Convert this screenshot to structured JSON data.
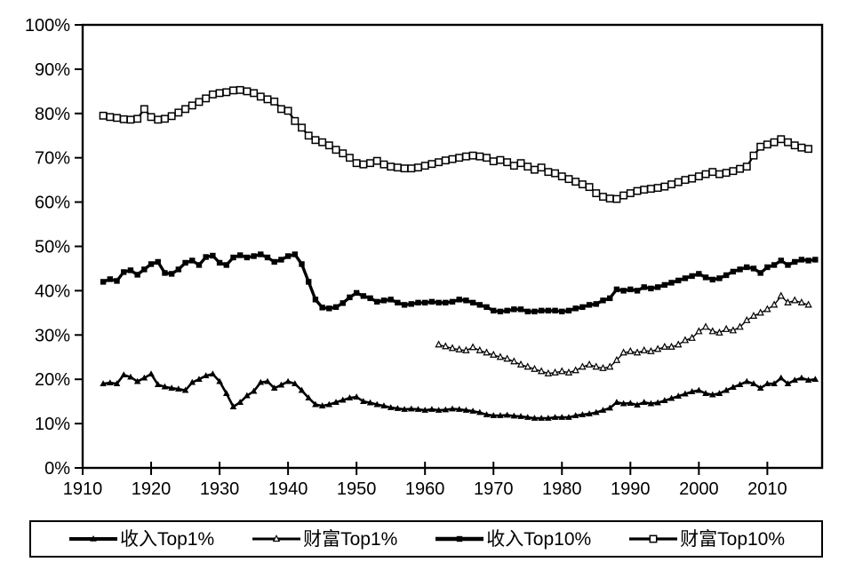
{
  "figure": {
    "background": "#ffffff",
    "axis_color": "#000000",
    "series_color": "#000000"
  },
  "chart_data": {
    "type": "line",
    "title": "",
    "xlabel": "",
    "ylabel": "",
    "grid": false,
    "legend_position": "bottom-boxed",
    "x_range": [
      1910,
      2018
    ],
    "y_range": [
      0,
      100
    ],
    "x_ticks": [
      1910,
      1920,
      1930,
      1940,
      1950,
      1960,
      1970,
      1980,
      1990,
      2000,
      2010
    ],
    "x_tick_labels": [
      "1910",
      "1920",
      "1930",
      "1940",
      "1950",
      "1960",
      "1970",
      "1980",
      "1990",
      "2000",
      "2010"
    ],
    "y_ticks": [
      0,
      10,
      20,
      30,
      40,
      50,
      60,
      70,
      80,
      90,
      100
    ],
    "y_tick_labels": [
      "0%",
      "10%",
      "20%",
      "30%",
      "40%",
      "50%",
      "60%",
      "70%",
      "80%",
      "90%",
      "100%"
    ],
    "series": [
      {
        "id": "income-top1",
        "name": "收入Top1%",
        "marker": "triangle-filled",
        "color": "#000000",
        "start_year": 1913,
        "values": [
          19.0,
          19.2,
          19.0,
          21.0,
          20.5,
          19.5,
          20.3,
          21.2,
          18.8,
          18.3,
          18.0,
          17.8,
          17.5,
          19.3,
          20.0,
          20.8,
          21.2,
          19.5,
          16.8,
          13.8,
          14.8,
          16.3,
          17.3,
          19.3,
          19.5,
          18.0,
          18.7,
          19.5,
          19.0,
          17.5,
          15.8,
          14.3,
          14.0,
          14.3,
          14.8,
          15.3,
          15.8,
          16.0,
          15.0,
          14.7,
          14.3,
          14.0,
          13.6,
          13.4,
          13.2,
          13.3,
          13.2,
          13.0,
          13.2,
          13.0,
          13.1,
          13.3,
          13.2,
          13.0,
          12.8,
          12.5,
          12.0,
          11.8,
          11.8,
          11.9,
          11.7,
          11.6,
          11.4,
          11.2,
          11.2,
          11.2,
          11.4,
          11.4,
          11.4,
          11.8,
          12.0,
          12.2,
          12.5,
          13.0,
          13.5,
          14.8,
          14.5,
          14.6,
          14.2,
          14.8,
          14.5,
          14.7,
          15.2,
          15.7,
          16.2,
          16.7,
          17.2,
          17.5,
          16.8,
          16.5,
          16.8,
          17.5,
          18.2,
          18.8,
          19.5,
          19.0,
          18.0,
          19.0,
          19.0,
          20.3,
          19.0,
          19.8,
          20.3,
          19.8,
          20.0
        ]
      },
      {
        "id": "wealth-top1",
        "name": "财富Top1%",
        "marker": "triangle-open",
        "color": "#000000",
        "start_year": 1962,
        "values": [
          27.8,
          27.4,
          27.0,
          26.7,
          26.5,
          27.2,
          26.5,
          26.0,
          25.5,
          25.0,
          24.6,
          24.0,
          23.3,
          22.8,
          22.3,
          21.8,
          21.3,
          21.5,
          21.8,
          21.5,
          22.0,
          22.8,
          23.3,
          22.8,
          22.5,
          22.8,
          24.3,
          26.0,
          26.3,
          26.0,
          26.5,
          26.3,
          26.8,
          27.3,
          27.3,
          27.8,
          28.8,
          29.3,
          30.8,
          31.8,
          30.8,
          30.5,
          31.3,
          31.0,
          31.8,
          33.3,
          34.3,
          35.0,
          35.8,
          36.8,
          38.8,
          37.3,
          37.8,
          37.3,
          36.8
        ]
      },
      {
        "id": "income-top10",
        "name": "收入Top10%",
        "marker": "square-filled",
        "color": "#000000",
        "start_year": 1913,
        "values": [
          42.0,
          42.6,
          42.2,
          44.2,
          44.6,
          43.6,
          44.8,
          46.0,
          46.5,
          44.0,
          43.8,
          44.8,
          46.3,
          46.8,
          45.8,
          47.6,
          47.9,
          46.3,
          45.8,
          47.5,
          48.0,
          47.5,
          47.8,
          48.2,
          47.5,
          46.5,
          47.0,
          47.8,
          48.2,
          46.0,
          42.0,
          38.0,
          36.2,
          36.0,
          36.3,
          37.2,
          38.5,
          39.5,
          38.8,
          38.3,
          37.5,
          37.8,
          38.0,
          37.3,
          36.8,
          37.0,
          37.3,
          37.3,
          37.5,
          37.3,
          37.3,
          37.5,
          38.0,
          37.8,
          37.3,
          36.8,
          36.3,
          35.5,
          35.3,
          35.5,
          35.8,
          35.8,
          35.3,
          35.3,
          35.5,
          35.5,
          35.5,
          35.3,
          35.5,
          36.0,
          36.3,
          36.8,
          37.0,
          37.8,
          38.3,
          40.3,
          40.0,
          40.3,
          40.0,
          40.8,
          40.5,
          40.8,
          41.3,
          41.8,
          42.3,
          42.8,
          43.3,
          43.8,
          43.0,
          42.5,
          42.8,
          43.5,
          44.3,
          44.8,
          45.3,
          45.0,
          44.0,
          45.3,
          45.8,
          46.8,
          45.8,
          46.5,
          47.0,
          46.8,
          47.0
        ]
      },
      {
        "id": "wealth-top10",
        "name": "财富Top10%",
        "marker": "square-open",
        "color": "#000000",
        "start_year": 1913,
        "values": [
          79.5,
          79.2,
          79.0,
          78.7,
          78.6,
          78.8,
          81.0,
          79.2,
          78.6,
          78.8,
          79.4,
          80.2,
          81.0,
          81.8,
          82.6,
          83.4,
          84.3,
          84.6,
          84.8,
          85.2,
          85.3,
          85.0,
          84.6,
          83.8,
          83.2,
          82.7,
          81.0,
          80.6,
          78.3,
          76.8,
          75.0,
          74.0,
          73.5,
          72.8,
          71.8,
          71.0,
          70.0,
          68.8,
          68.5,
          68.8,
          69.3,
          68.5,
          68.0,
          67.8,
          67.6,
          67.6,
          67.8,
          68.2,
          68.6,
          69.0,
          69.4,
          69.7,
          70.0,
          70.3,
          70.5,
          70.3,
          70.0,
          69.2,
          69.5,
          69.0,
          68.2,
          68.8,
          68.0,
          67.3,
          67.8,
          66.8,
          66.5,
          65.8,
          65.2,
          64.6,
          64.0,
          63.4,
          62.0,
          61.2,
          60.8,
          60.7,
          61.5,
          62.0,
          62.5,
          62.8,
          63.0,
          63.2,
          63.5,
          64.0,
          64.5,
          65.0,
          65.3,
          65.8,
          66.3,
          66.8,
          66.3,
          66.6,
          67.0,
          67.5,
          68.0,
          70.5,
          72.5,
          73.0,
          73.5,
          74.2,
          73.5,
          72.8,
          72.3,
          72.0
        ]
      }
    ]
  }
}
